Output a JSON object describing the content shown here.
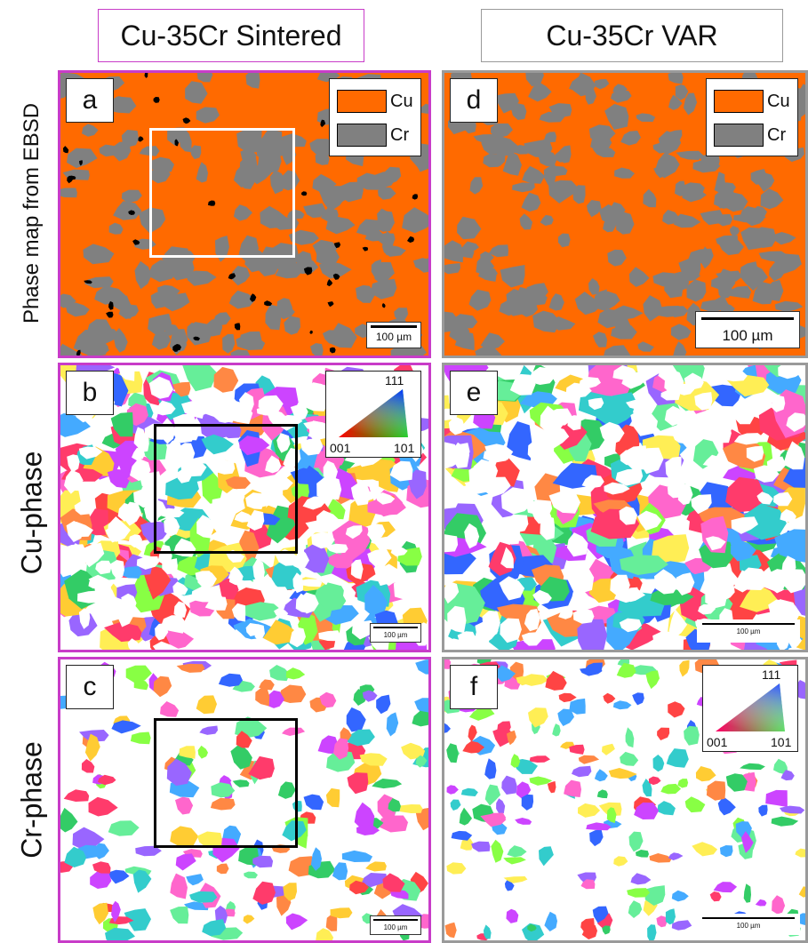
{
  "columns": {
    "left": "Cu-35Cr Sintered",
    "right": "Cu-35Cr VAR"
  },
  "rows": {
    "a": "Phase map from EBSD",
    "b": "Cu-phase",
    "c": "Cr-phase"
  },
  "panels": {
    "a": "a",
    "b": "b",
    "c": "c",
    "d": "d",
    "e": "e",
    "f": "f"
  },
  "legend": {
    "cu": "Cu",
    "cr": "Cr"
  },
  "colors": {
    "cu": "#ff6a00",
    "cr": "#808080",
    "pink_frame": "#c83cc8",
    "gray_frame": "#9a9a9a"
  },
  "scale": {
    "a": "100 µm",
    "b": "100 µm",
    "c": "100 µm",
    "d": "100 µm",
    "e": "100 µm",
    "f": "100 µm"
  },
  "ipf": {
    "top": "111",
    "left": "001",
    "right": "101"
  }
}
